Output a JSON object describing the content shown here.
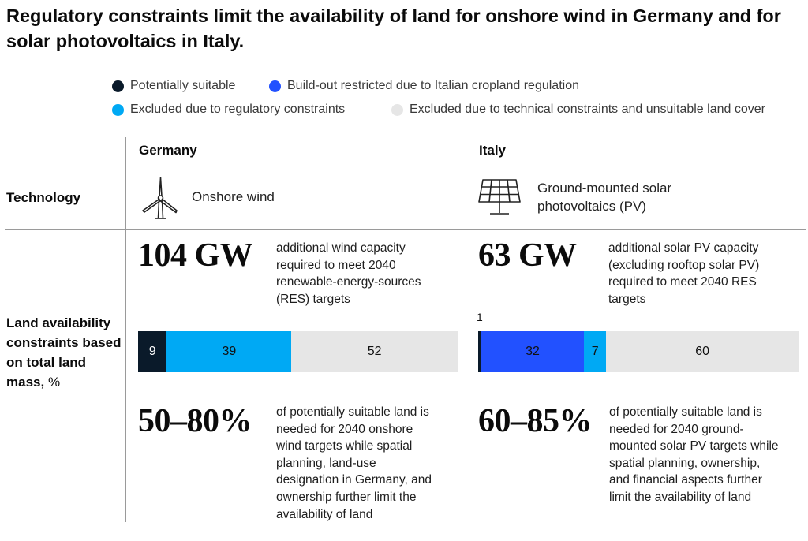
{
  "title": "Regulatory constraints limit the availability of land for onshore wind in Germany and for solar photovoltaics in Italy.",
  "legend": [
    {
      "label": "Potentially suitable",
      "color": "#0a1a2a"
    },
    {
      "label": "Build-out restricted due to Italian cropland regulation",
      "color": "#2251ff"
    },
    {
      "label": "Excluded due to regulatory constraints",
      "color": "#00a9f4"
    },
    {
      "label": "Excluded due to technical constraints and unsuitable land cover",
      "color": "#e6e6e6"
    }
  ],
  "columns": {
    "germany": "Germany",
    "italy": "Italy"
  },
  "rows": {
    "technology": "Technology",
    "land": "Land availability constraints based on total land mass,",
    "land_unit": "%"
  },
  "germany": {
    "tech_label": "Onshore wind",
    "tech_icon": "wind-turbine-icon",
    "capacity": "104 GW",
    "capacity_desc": [
      "additional wind capacity",
      "required to meet 2040",
      "renewable-energy-sources",
      "(RES) targets"
    ],
    "share": "50–80%",
    "share_desc": [
      "of potentially suitable land is",
      "needed for 2040 onshore",
      "wind targets while spatial",
      "planning, land-use",
      "designation in Germany, and",
      "ownership further limit the",
      "availability of land"
    ]
  },
  "italy": {
    "tech_label": [
      "Ground-mounted solar",
      "photovoltaics (PV)"
    ],
    "tech_icon": "solar-panel-icon",
    "capacity": "63 GW",
    "capacity_desc": [
      "additional solar PV capacity",
      "(excluding rooftop solar PV)",
      "required to meet 2040 RES",
      "targets"
    ],
    "share": "60–85%",
    "share_desc": [
      "of potentially suitable land is",
      "needed for 2040 ground-",
      "mounted solar PV targets while",
      "spatial planning, ownership,",
      "and financial aspects further",
      "limit the availability of land"
    ]
  },
  "chart_data": [
    {
      "type": "bar",
      "orientation": "horizontal-stacked",
      "title": "Germany",
      "unit": "%",
      "series": [
        {
          "name": "Potentially suitable",
          "value": 9,
          "label": "9",
          "color": "#0a1a2a"
        },
        {
          "name": "Excluded due to regulatory constraints",
          "value": 39,
          "label": "39",
          "color": "#00a9f4"
        },
        {
          "name": "Excluded due to technical constraints and unsuitable land cover",
          "value": 52,
          "label": "52",
          "color": "#e6e6e6"
        }
      ]
    },
    {
      "type": "bar",
      "orientation": "horizontal-stacked",
      "title": "Italy",
      "unit": "%",
      "series": [
        {
          "name": "Potentially suitable",
          "value": 1,
          "label": "1",
          "color": "#0a1a2a"
        },
        {
          "name": "Build-out restricted due to Italian cropland regulation",
          "value": 32,
          "label": "32",
          "color": "#2251ff"
        },
        {
          "name": "Excluded due to regulatory constraints",
          "value": 7,
          "label": "7",
          "color": "#00a9f4"
        },
        {
          "name": "Excluded due to technical constraints and unsuitable land cover",
          "value": 60,
          "label": "60",
          "color": "#e6e6e6"
        }
      ]
    }
  ]
}
